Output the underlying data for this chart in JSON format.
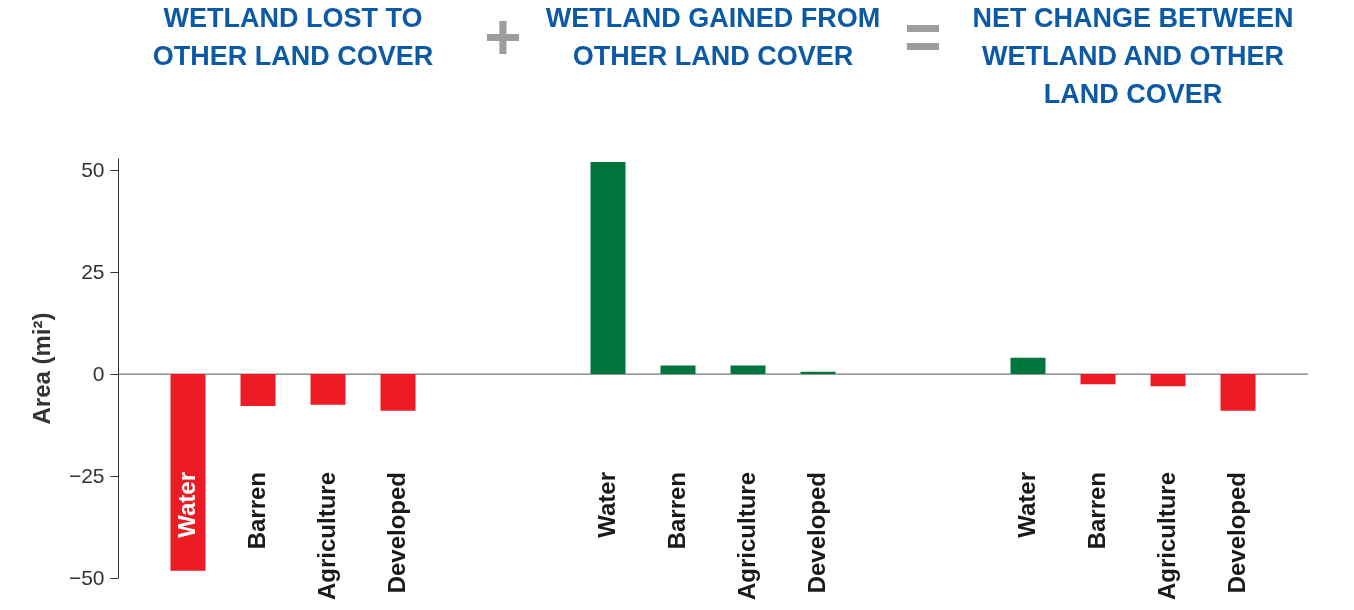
{
  "chart_data": {
    "type": "bar",
    "categories": [
      "Water",
      "Barren",
      "Agriculture",
      "Developed",
      null,
      null,
      "Water",
      "Barren",
      "Agriculture",
      "Developed",
      null,
      null,
      "Water",
      "Barren",
      "Agriculture",
      "Developed"
    ],
    "values": [
      -48.2,
      -7.8,
      -7.5,
      -9.0,
      null,
      null,
      52,
      2.1,
      2.1,
      0.6,
      null,
      null,
      4.0,
      -2.5,
      -3.0,
      -9.0
    ],
    "colors": [
      "#ed1c24",
      "#ed1c24",
      "#ed1c24",
      "#ed1c24",
      null,
      null,
      "#00763d",
      "#00763d",
      "#00763d",
      "#00763d",
      null,
      null,
      "#00763d",
      "#ed1c24",
      "#ed1c24",
      "#ed1c24"
    ],
    "ylabel": "Area (mi²)",
    "ylim": [
      -50,
      53
    ],
    "yticks": [
      50,
      25,
      0,
      -25,
      -50
    ],
    "grid": false,
    "ref_lines": [
      {
        "axis": "y",
        "value": 0,
        "color": "#555555"
      }
    ],
    "annotations": [
      "WETLAND LOST TO\nOTHER LAND COVER",
      "+",
      "WETLAND GAINED FROM\nOTHER LAND COVER",
      "=",
      "NET CHANGE BETWEEN\nWETLAND AND OTHER\nLAND COVER"
    ]
  }
}
